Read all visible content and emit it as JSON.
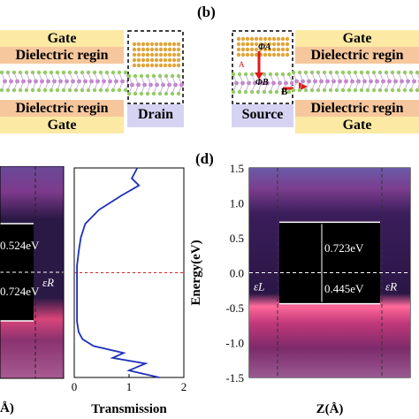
{
  "panels": {
    "b_label": "(b)",
    "d_label": "(d)"
  },
  "device_left": {
    "gate_top": "Gate",
    "dielectric_top": "Dielectric regin",
    "dielectric_bottom": "Dielectric regin",
    "gate_bottom": "Gate",
    "drain": "Drain"
  },
  "device_right": {
    "gate_top": "Gate",
    "dielectric_top": "Dielectric regin",
    "dielectric_bottom": "Dielectric regin",
    "gate_bottom": "Gate",
    "source": "Source",
    "phi_a": "ΦA",
    "phi_b": "ΦB",
    "point_a": "A",
    "point_b": "B"
  },
  "plot_c_partial": {
    "energy_upper": "0.524eV",
    "energy_lower": "0.724eV",
    "fermi_label": "εR",
    "xlabel_partial": "Å)"
  },
  "chart_data": [
    {
      "type": "line",
      "title": "",
      "xlabel": "Transmission",
      "ylabel": "",
      "xlim": [
        0,
        2
      ],
      "ylim": [
        -1.5,
        1.5
      ],
      "xticks": [
        "0",
        "1",
        "2"
      ],
      "series": [
        {
          "color": "#1c2fb8",
          "x": [
            1.15,
            1.05,
            1.18,
            0.85,
            0.45,
            0.2,
            0.12,
            0.08,
            0.05,
            0.05,
            0.05,
            0.05,
            0.05,
            0.05,
            0.08,
            0.15,
            0.35,
            0.9,
            0.7,
            1.3,
            1.0,
            1.55
          ],
          "y": [
            1.5,
            1.35,
            1.25,
            1.1,
            0.9,
            0.7,
            0.5,
            0.3,
            0.1,
            0.0,
            -0.1,
            -0.3,
            -0.5,
            -0.7,
            -0.85,
            -0.95,
            -1.05,
            -1.15,
            -1.22,
            -1.3,
            -1.4,
            -1.5
          ]
        }
      ],
      "fermi_level": 0.0
    },
    {
      "type": "heatmap",
      "title": "",
      "xlabel": "Z(Å)",
      "ylabel": "Energy(eV)",
      "ylim": [
        -1.5,
        1.5
      ],
      "yticks": [
        "1.5",
        "1.0",
        "0.5",
        "0.0",
        "-0.5",
        "-1.0",
        "-1.5"
      ],
      "conduction_band_edge": 0.723,
      "valence_band_edge": -0.445,
      "annotations": [
        "0.723eV",
        "0.445eV"
      ],
      "left_fermi_label": "εL",
      "right_fermi_label": "εR",
      "fermi_level": 0.0
    }
  ]
}
